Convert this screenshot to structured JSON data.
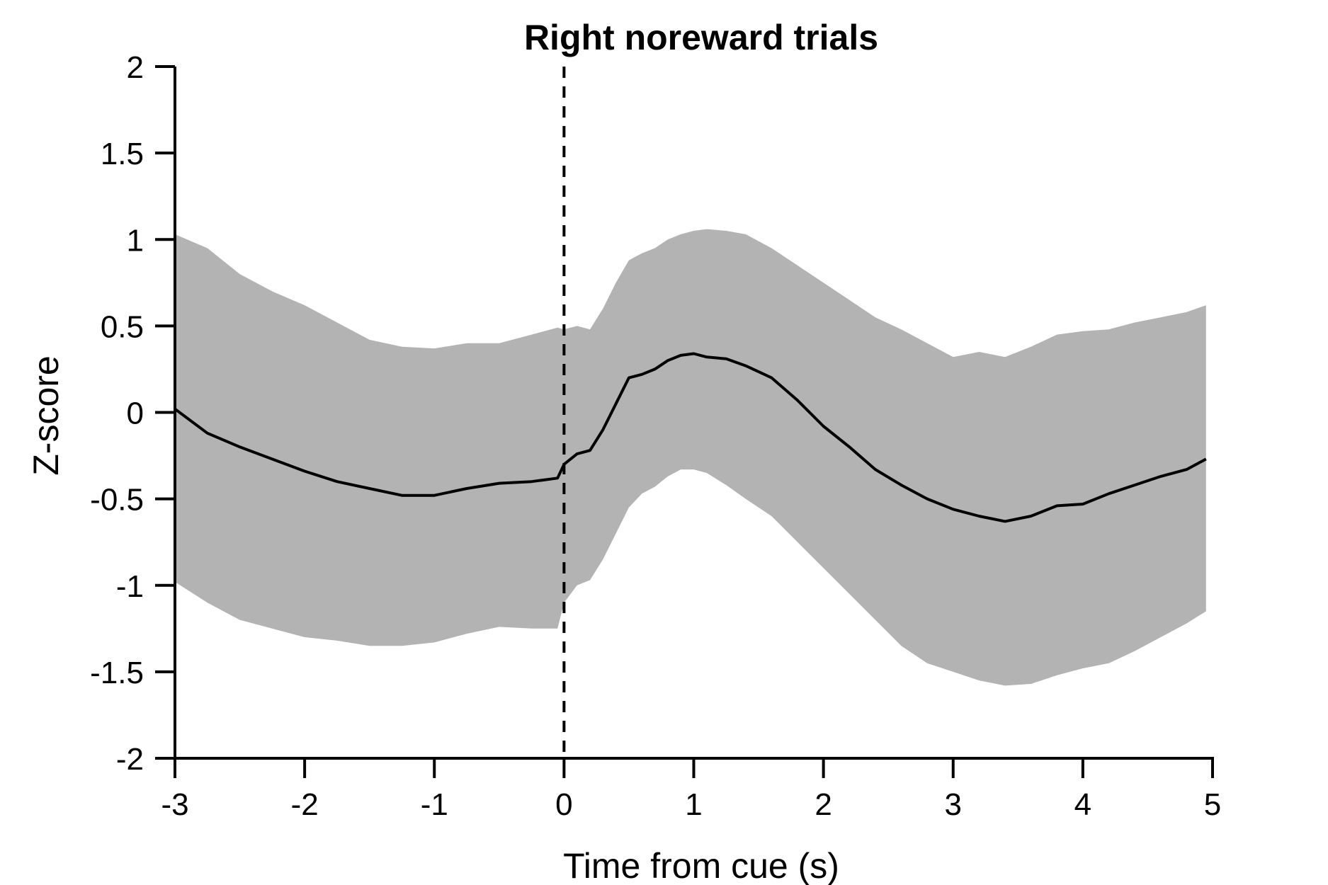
{
  "chart_data": {
    "type": "line",
    "title": "Right noreward trials",
    "xlabel": "Time from cue (s)",
    "ylabel": "Z-score",
    "xlim": [
      -3,
      5
    ],
    "ylim": [
      -2,
      2
    ],
    "xticks": [
      -3,
      -2,
      -1,
      0,
      1,
      2,
      3,
      4,
      5
    ],
    "yticks": [
      2,
      1.5,
      1,
      0.5,
      0,
      -0.5,
      -1,
      -1.5,
      -2
    ],
    "xtick_labels": [
      "-3",
      "-2",
      "-1",
      "0",
      "1",
      "2",
      "3",
      "4",
      "5"
    ],
    "ytick_labels": [
      "2",
      "1.5",
      "1",
      "0.5",
      "0",
      "-0.5",
      "-1",
      "-1.5",
      "-2"
    ],
    "grid": false,
    "annotations": [
      {
        "type": "vline",
        "x": 0,
        "style": "dashed"
      }
    ],
    "series": [
      {
        "type": "line",
        "x": [
          -3,
          -2.75,
          -2.5,
          -2.25,
          -2,
          -1.75,
          -1.5,
          -1.25,
          -1,
          -0.75,
          -0.5,
          -0.25,
          -0.05,
          0,
          0.1,
          0.2,
          0.3,
          0.4,
          0.5,
          0.6,
          0.7,
          0.8,
          0.9,
          1,
          1.1,
          1.25,
          1.4,
          1.6,
          1.8,
          2,
          2.2,
          2.4,
          2.6,
          2.8,
          3,
          3.2,
          3.4,
          3.6,
          3.8,
          4,
          4.2,
          4.4,
          4.6,
          4.8,
          4.95
        ],
        "values": [
          0.02,
          -0.12,
          -0.2,
          -0.27,
          -0.34,
          -0.4,
          -0.44,
          -0.48,
          -0.48,
          -0.44,
          -0.41,
          -0.4,
          -0.38,
          -0.3,
          -0.24,
          -0.22,
          -0.1,
          0.05,
          0.2,
          0.22,
          0.25,
          0.3,
          0.33,
          0.34,
          0.32,
          0.31,
          0.27,
          0.2,
          0.07,
          -0.08,
          -0.2,
          -0.33,
          -0.42,
          -0.5,
          -0.56,
          -0.6,
          -0.63,
          -0.6,
          -0.54,
          -0.53,
          -0.47,
          -0.42,
          -0.37,
          -0.33,
          -0.27
        ]
      },
      {
        "type": "band",
        "x": [
          -3,
          -2.75,
          -2.5,
          -2.25,
          -2,
          -1.75,
          -1.5,
          -1.25,
          -1,
          -0.75,
          -0.5,
          -0.25,
          -0.05,
          0,
          0.1,
          0.2,
          0.3,
          0.4,
          0.5,
          0.6,
          0.7,
          0.8,
          0.9,
          1,
          1.1,
          1.25,
          1.4,
          1.6,
          1.8,
          2,
          2.2,
          2.4,
          2.6,
          2.8,
          3,
          3.2,
          3.4,
          3.6,
          3.8,
          4,
          4.2,
          4.4,
          4.6,
          4.8,
          4.95
        ],
        "upper": [
          1.03,
          0.95,
          0.8,
          0.7,
          0.62,
          0.52,
          0.42,
          0.38,
          0.37,
          0.4,
          0.4,
          0.45,
          0.49,
          0.48,
          0.5,
          0.48,
          0.6,
          0.75,
          0.88,
          0.92,
          0.95,
          1.0,
          1.03,
          1.05,
          1.06,
          1.05,
          1.03,
          0.95,
          0.85,
          0.75,
          0.65,
          0.55,
          0.48,
          0.4,
          0.32,
          0.35,
          0.32,
          0.38,
          0.45,
          0.47,
          0.48,
          0.52,
          0.55,
          0.58,
          0.62
        ],
        "lower": [
          -0.98,
          -1.1,
          -1.2,
          -1.25,
          -1.3,
          -1.32,
          -1.35,
          -1.35,
          -1.33,
          -1.28,
          -1.24,
          -1.25,
          -1.25,
          -1.1,
          -1.0,
          -0.97,
          -0.85,
          -0.7,
          -0.55,
          -0.47,
          -0.43,
          -0.37,
          -0.33,
          -0.33,
          -0.35,
          -0.42,
          -0.5,
          -0.6,
          -0.75,
          -0.9,
          -1.05,
          -1.2,
          -1.35,
          -1.45,
          -1.5,
          -1.55,
          -1.58,
          -1.57,
          -1.52,
          -1.48,
          -1.45,
          -1.38,
          -1.3,
          -1.22,
          -1.15
        ]
      }
    ]
  },
  "colors": {
    "line": "#000000",
    "band": "#b3b3b3",
    "axis": "#000000"
  }
}
